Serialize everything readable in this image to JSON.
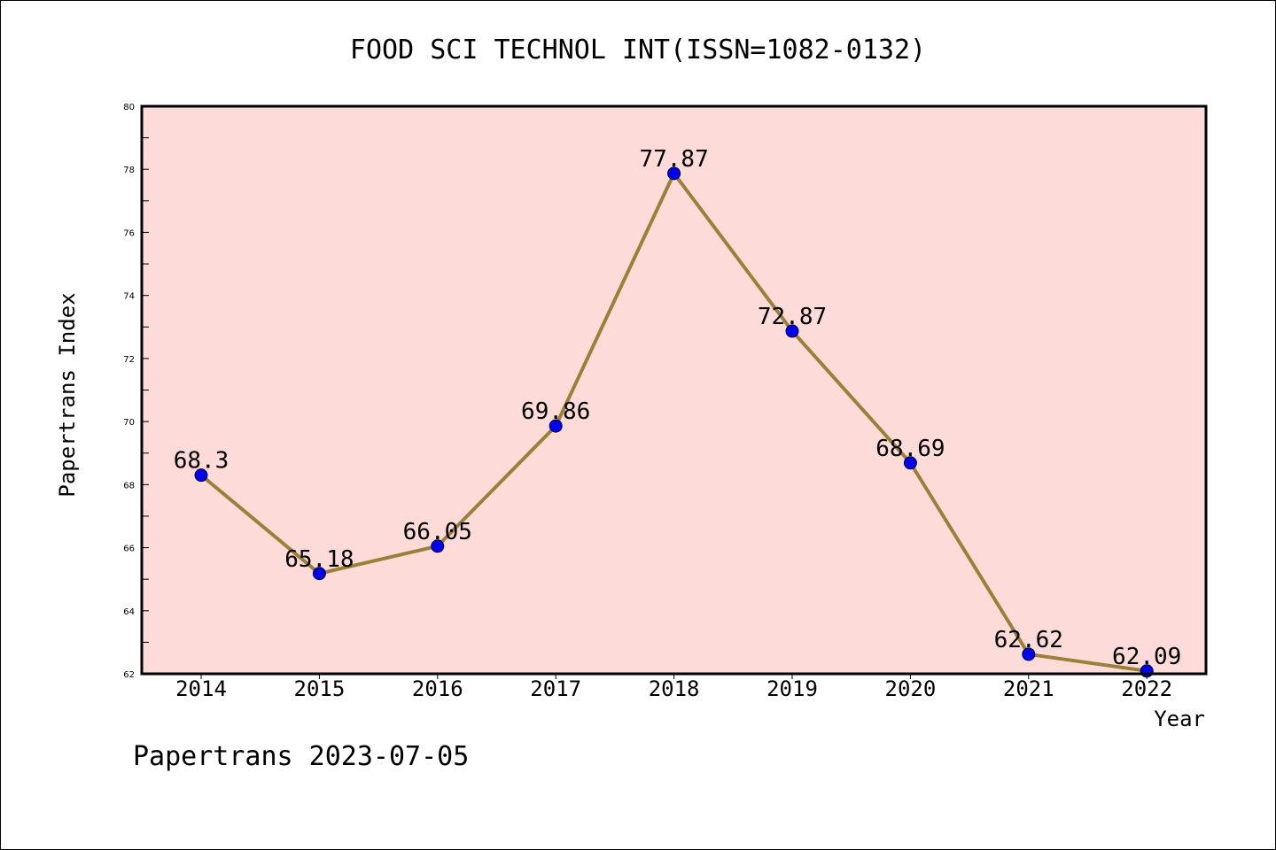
{
  "chart_data": {
    "type": "line",
    "title": "FOOD SCI TECHNOL INT(ISSN=1082-0132)",
    "xlabel": "Year",
    "ylabel": "Papertrans Index",
    "categories": [
      "2014",
      "2015",
      "2016",
      "2017",
      "2018",
      "2019",
      "2020",
      "2021",
      "2022"
    ],
    "series": [
      {
        "values": [
          68.3,
          65.18,
          66.05,
          69.86,
          77.87,
          72.87,
          68.69,
          62.62,
          62.09
        ],
        "labels": [
          "68.3",
          "65.18",
          "66.05",
          "69.86",
          "77.87",
          "72.87",
          "68.69",
          "62.62",
          "62.09"
        ]
      }
    ],
    "ylim": [
      62,
      80
    ],
    "yticks": [
      "62",
      "64",
      "66",
      "68",
      "70",
      "72",
      "74",
      "76",
      "78",
      "80"
    ],
    "grid": false,
    "colors": {
      "plot_background": "#fddbd8",
      "line": "#9a8038",
      "marker": "#0000ee"
    }
  },
  "footer": {
    "text": "Papertrans 2023-07-05"
  }
}
